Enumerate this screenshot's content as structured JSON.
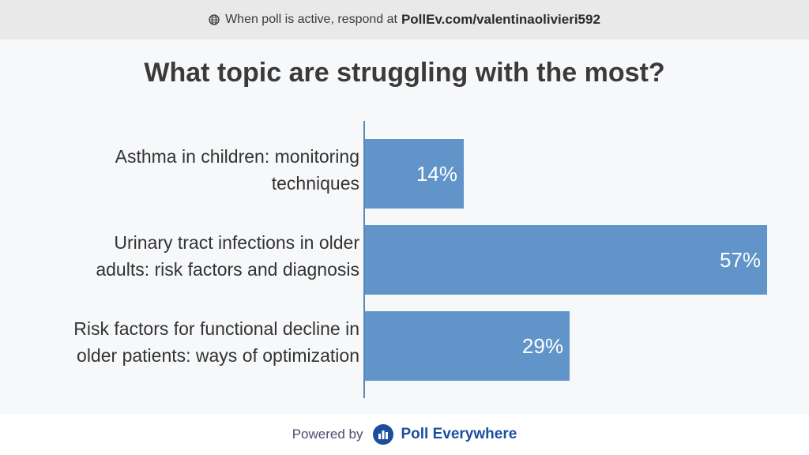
{
  "header": {
    "prefix": "When poll is active, respond at",
    "url": "PollEv.com/valentinaolivieri592",
    "icon": "globe-icon"
  },
  "title": "What topic are struggling with the most?",
  "chart_data": {
    "type": "bar",
    "orientation": "horizontal",
    "categories": [
      [
        "Asthma in children: monitoring",
        "techniques"
      ],
      [
        "Urinary tract infections in older",
        "adults: risk factors and diagnosis"
      ],
      [
        "Risk factors for functional decline in",
        "older patients: ways of optimization"
      ]
    ],
    "values": [
      14,
      57,
      29
    ],
    "value_labels": [
      "14%",
      "57%",
      "29%"
    ],
    "xlim": [
      0,
      57
    ],
    "bar_color": "#6195c9",
    "axis_color": "#5b86b8",
    "grid": false
  },
  "footer": {
    "powered_label": "Powered by",
    "brand": "Poll Everywhere",
    "brand_color": "#1d4e9e",
    "icon": "poll-everywhere-logo-icon"
  }
}
